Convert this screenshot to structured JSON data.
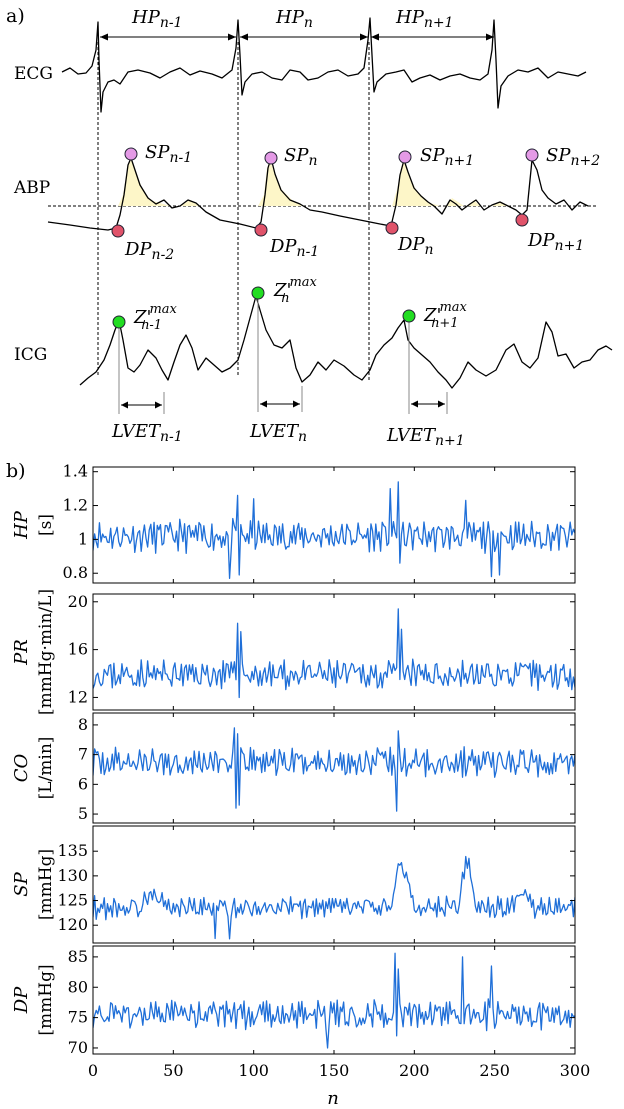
{
  "panel_a": {
    "label": "a)",
    "rows": {
      "ecg": "ECG",
      "abp": "ABP",
      "icg": "ICG"
    },
    "hp_labels": [
      {
        "main": "HP",
        "sub": "n-1"
      },
      {
        "main": "HP",
        "sub": "n"
      },
      {
        "main": "HP",
        "sub": "n+1"
      }
    ],
    "sp_labels": [
      {
        "main": "SP",
        "sub": "n-1"
      },
      {
        "main": "SP",
        "sub": "n"
      },
      {
        "main": "SP",
        "sub": "n+1"
      },
      {
        "main": "SP",
        "sub": "n+2"
      }
    ],
    "dp_labels": [
      {
        "main": "DP",
        "sub": "n-2"
      },
      {
        "main": "DP",
        "sub": "n-1"
      },
      {
        "main": "DP",
        "sub": "n"
      },
      {
        "main": "DP",
        "sub": "n+1"
      }
    ],
    "z_labels": [
      {
        "main": "Z'",
        "sup": "max",
        "sub": "n-1"
      },
      {
        "main": "Z'",
        "sup": "max",
        "sub": "n"
      },
      {
        "main": "Z'",
        "sup": "max",
        "sub": "n+1"
      }
    ],
    "lvet_labels": [
      {
        "main": "LVET",
        "sub": "n-1"
      },
      {
        "main": "LVET",
        "sub": "n"
      },
      {
        "main": "LVET",
        "sub": "n+1"
      }
    ],
    "colors": {
      "sp": "#e49ae6",
      "dp": "#e0536a",
      "z": "#22dd22",
      "fill": "#fdf6c8"
    }
  },
  "panel_b": {
    "label": "b)"
  },
  "chart_data": [
    {
      "type": "line",
      "var": "HP",
      "unit": "[s]",
      "ylim": [
        0.76,
        1.41
      ],
      "yticks": [
        0.8,
        1,
        1.2,
        1.4
      ],
      "ytick_labels": [
        "0.8",
        "1",
        "1.2",
        "1.4"
      ],
      "xlim": [
        0,
        300
      ],
      "mean": 1.02,
      "amp": 0.085,
      "seed": 11,
      "spikes": [
        [
          90,
          1.26
        ],
        [
          91,
          0.79
        ],
        [
          100,
          1.24
        ],
        [
          85,
          0.77
        ],
        [
          190,
          1.34
        ],
        [
          191,
          0.86
        ],
        [
          185,
          1.3
        ],
        [
          232,
          1.23
        ],
        [
          248,
          0.78
        ],
        [
          253,
          0.79
        ]
      ]
    },
    {
      "type": "line",
      "var": "PR",
      "unit": "[mmHg·min/L]",
      "ylim": [
        11.2,
        20.4
      ],
      "yticks": [
        12,
        16,
        20
      ],
      "ytick_labels": [
        "12",
        "16",
        "20"
      ],
      "xlim": [
        0,
        300
      ],
      "mean": 13.9,
      "amp": 1.15,
      "seed": 23,
      "spikes": [
        [
          90,
          18.2
        ],
        [
          91,
          12.0
        ],
        [
          92,
          17.5
        ],
        [
          190,
          19.4
        ],
        [
          191,
          13.5
        ],
        [
          192,
          17.7
        ],
        [
          193,
          14.2
        ]
      ]
    },
    {
      "type": "line",
      "var": "CO",
      "unit": "[L/min]",
      "ylim": [
        4.8,
        8.3
      ],
      "yticks": [
        5,
        6,
        7,
        8
      ],
      "ytick_labels": [
        "5",
        "6",
        "7",
        "8"
      ],
      "xlim": [
        0,
        300
      ],
      "mean": 6.75,
      "amp": 0.45,
      "seed": 37,
      "spikes": [
        [
          88,
          7.9
        ],
        [
          89,
          5.2
        ],
        [
          90,
          7.7
        ],
        [
          91,
          5.3
        ],
        [
          189,
          5.1
        ],
        [
          190,
          7.8
        ]
      ]
    },
    {
      "type": "line",
      "var": "SP",
      "unit": "[mmHg]",
      "ylim": [
        117,
        139.5
      ],
      "yticks": [
        120,
        125,
        130,
        135
      ],
      "ytick_labels": [
        "120",
        "125",
        "130",
        "135"
      ],
      "xlim": [
        0,
        300
      ],
      "mean": 123.6,
      "amp": 2.0,
      "seed": 53,
      "bumps": [
        [
          185,
          200,
          10
        ],
        [
          228,
          238,
          11
        ],
        [
          30,
          45,
          4
        ],
        [
          260,
          275,
          4
        ]
      ],
      "spikes": [
        [
          76,
          117.3
        ],
        [
          85,
          117.2
        ]
      ]
    },
    {
      "type": "line",
      "var": "DP",
      "unit": "[mmHg]",
      "ylim": [
        69.5,
        86.3
      ],
      "yticks": [
        70,
        75,
        80,
        85
      ],
      "ytick_labels": [
        "70",
        "75",
        "80",
        "85"
      ],
      "xlim": [
        0,
        300
      ],
      "mean": 75.5,
      "amp": 2.2,
      "seed": 71,
      "spikes": [
        [
          188,
          85.6
        ],
        [
          189,
          72.0
        ],
        [
          190,
          83.0
        ],
        [
          230,
          85.0
        ],
        [
          231,
          74.0
        ],
        [
          248,
          83.5
        ],
        [
          146,
          70.0
        ]
      ]
    }
  ],
  "x_axis": {
    "ticks": [
      0,
      50,
      100,
      150,
      200,
      250,
      300
    ],
    "tick_labels": [
      "0",
      "50",
      "100",
      "150",
      "200",
      "250",
      "300"
    ],
    "label": "n"
  }
}
